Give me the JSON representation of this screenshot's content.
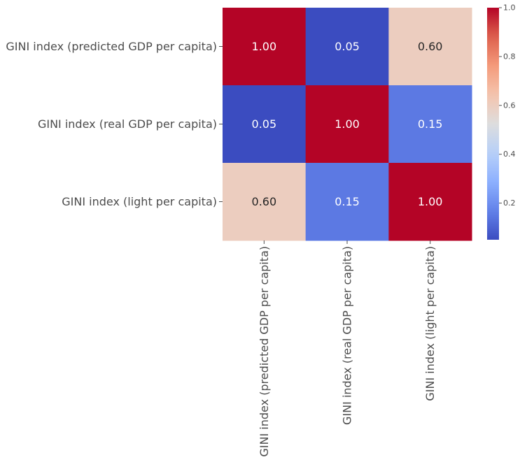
{
  "chart_data": {
    "type": "heatmap",
    "title": "",
    "xlabel": "",
    "ylabel": "",
    "row_labels": [
      "GINI index (predicted GDP per capita)",
      "GINI index (real GDP per capita)",
      "GINI index (light per capita)"
    ],
    "col_labels": [
      "GINI index (predicted GDP per capita)",
      "GINI index (real GDP per capita)",
      "GINI index (light per capita)"
    ],
    "values": [
      [
        1.0,
        0.05,
        0.6
      ],
      [
        0.05,
        1.0,
        0.15
      ],
      [
        0.6,
        0.15,
        1.0
      ]
    ],
    "annotations": [
      [
        "1.00",
        "0.05",
        "0.60"
      ],
      [
        "0.05",
        "1.00",
        "0.15"
      ],
      [
        "0.60",
        "0.15",
        "1.00"
      ]
    ],
    "colormap": "coolwarm",
    "vmin": 0.05,
    "vmax": 1.0,
    "colorbar": {
      "ticks": [
        0.2,
        0.4,
        0.6,
        0.8,
        1.0
      ],
      "tick_labels": [
        "0.2",
        "0.4",
        "0.6",
        "0.8",
        "1.0"
      ]
    },
    "grid": false,
    "legend": "colorbar-right"
  }
}
